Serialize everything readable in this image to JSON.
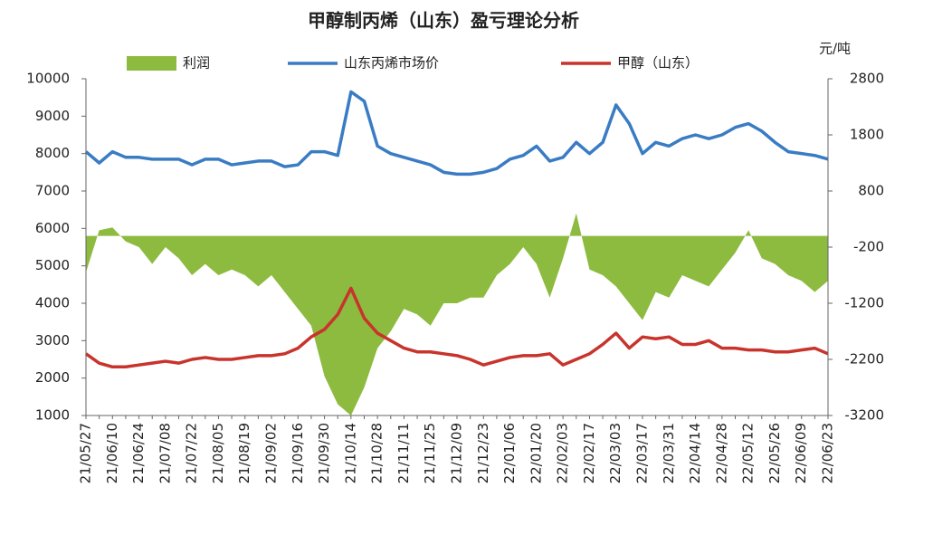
{
  "chart_data": {
    "type": "combo",
    "title": "甲醇制丙烯（山东）盈亏理论分析",
    "y2_unit": "元/吨",
    "categories": [
      "21/05/27",
      null,
      "21/06/10",
      null,
      "21/06/24",
      null,
      "21/07/08",
      null,
      "21/07/22",
      null,
      "21/08/05",
      null,
      "21/08/19",
      null,
      "21/09/02",
      null,
      "21/09/16",
      null,
      "21/09/30",
      null,
      "21/10/14",
      null,
      "21/10/28",
      null,
      "21/11/11",
      null,
      "21/11/25",
      null,
      "21/12/09",
      null,
      "21/12/23",
      null,
      "22/01/06",
      null,
      "22/01/20",
      null,
      "22/02/03",
      null,
      "22/02/17",
      null,
      "22/03/03",
      null,
      "22/03/17",
      null,
      "22/03/31",
      null,
      "22/04/14",
      null,
      "22/04/28",
      null,
      "22/05/12",
      null,
      "22/05/26",
      null,
      "22/06/09",
      null,
      "22/06/23"
    ],
    "series": [
      {
        "name": "利润",
        "kind": "area",
        "axis": "y2",
        "color": "#8dbb3f",
        "values": [
          -650,
          100,
          150,
          -100,
          -200,
          -500,
          -200,
          -400,
          -700,
          -500,
          -700,
          -600,
          -700,
          -900,
          -700,
          -1000,
          -1300,
          -1600,
          -2500,
          -3000,
          -3200,
          -2700,
          -2000,
          -1700,
          -1300,
          -1400,
          -1600,
          -1200,
          -1200,
          -1100,
          -1100,
          -700,
          -500,
          -200,
          -500,
          -1100,
          -400,
          400,
          -600,
          -700,
          -900,
          -1200,
          -1500,
          -1000,
          -1100,
          -700,
          -800,
          -900,
          -600,
          -300,
          100,
          -400,
          -500,
          -700,
          -800,
          -1000,
          -800
        ]
      },
      {
        "name": "山东丙烯市场价",
        "kind": "line",
        "color": "#3a7cc4",
        "values": [
          8050,
          7750,
          8050,
          7900,
          7900,
          7850,
          7850,
          7850,
          7700,
          7850,
          7850,
          7700,
          7750,
          7800,
          7800,
          7650,
          7700,
          8050,
          8050,
          7950,
          9650,
          9400,
          8200,
          8000,
          7900,
          7800,
          7700,
          7500,
          7450,
          7450,
          7500,
          7600,
          7850,
          7950,
          8200,
          7800,
          7900,
          8300,
          8000,
          8300,
          9300,
          8800,
          8000,
          8300,
          8200,
          8400,
          8500,
          8400,
          8500,
          8700,
          8800,
          8600,
          8300,
          8050,
          8000,
          7950,
          7850
        ]
      },
      {
        "name": "甲醇（山东）",
        "kind": "line",
        "color": "#c8342c",
        "values": [
          2650,
          2400,
          2300,
          2300,
          2350,
          2400,
          2450,
          2400,
          2500,
          2550,
          2500,
          2500,
          2550,
          2600,
          2600,
          2650,
          2800,
          3100,
          3300,
          3700,
          4400,
          3600,
          3200,
          3000,
          2800,
          2700,
          2700,
          2650,
          2600,
          2500,
          2350,
          2450,
          2550,
          2600,
          2600,
          2650,
          2350,
          2500,
          2650,
          2900,
          3200,
          2800,
          3100,
          3050,
          3100,
          2900,
          2900,
          3000,
          2800,
          2800,
          2750,
          2750,
          2700,
          2700,
          2750,
          2800,
          2650
        ]
      }
    ],
    "ylim": [
      1000,
      10000
    ],
    "yticks": [
      1000,
      2000,
      3000,
      4000,
      5000,
      6000,
      7000,
      8000,
      9000,
      10000
    ],
    "y2lim": [
      -3200,
      2800
    ],
    "y2ticks": [
      -3200,
      -2200,
      -1200,
      -200,
      800,
      1800,
      2800
    ],
    "grid": false
  }
}
